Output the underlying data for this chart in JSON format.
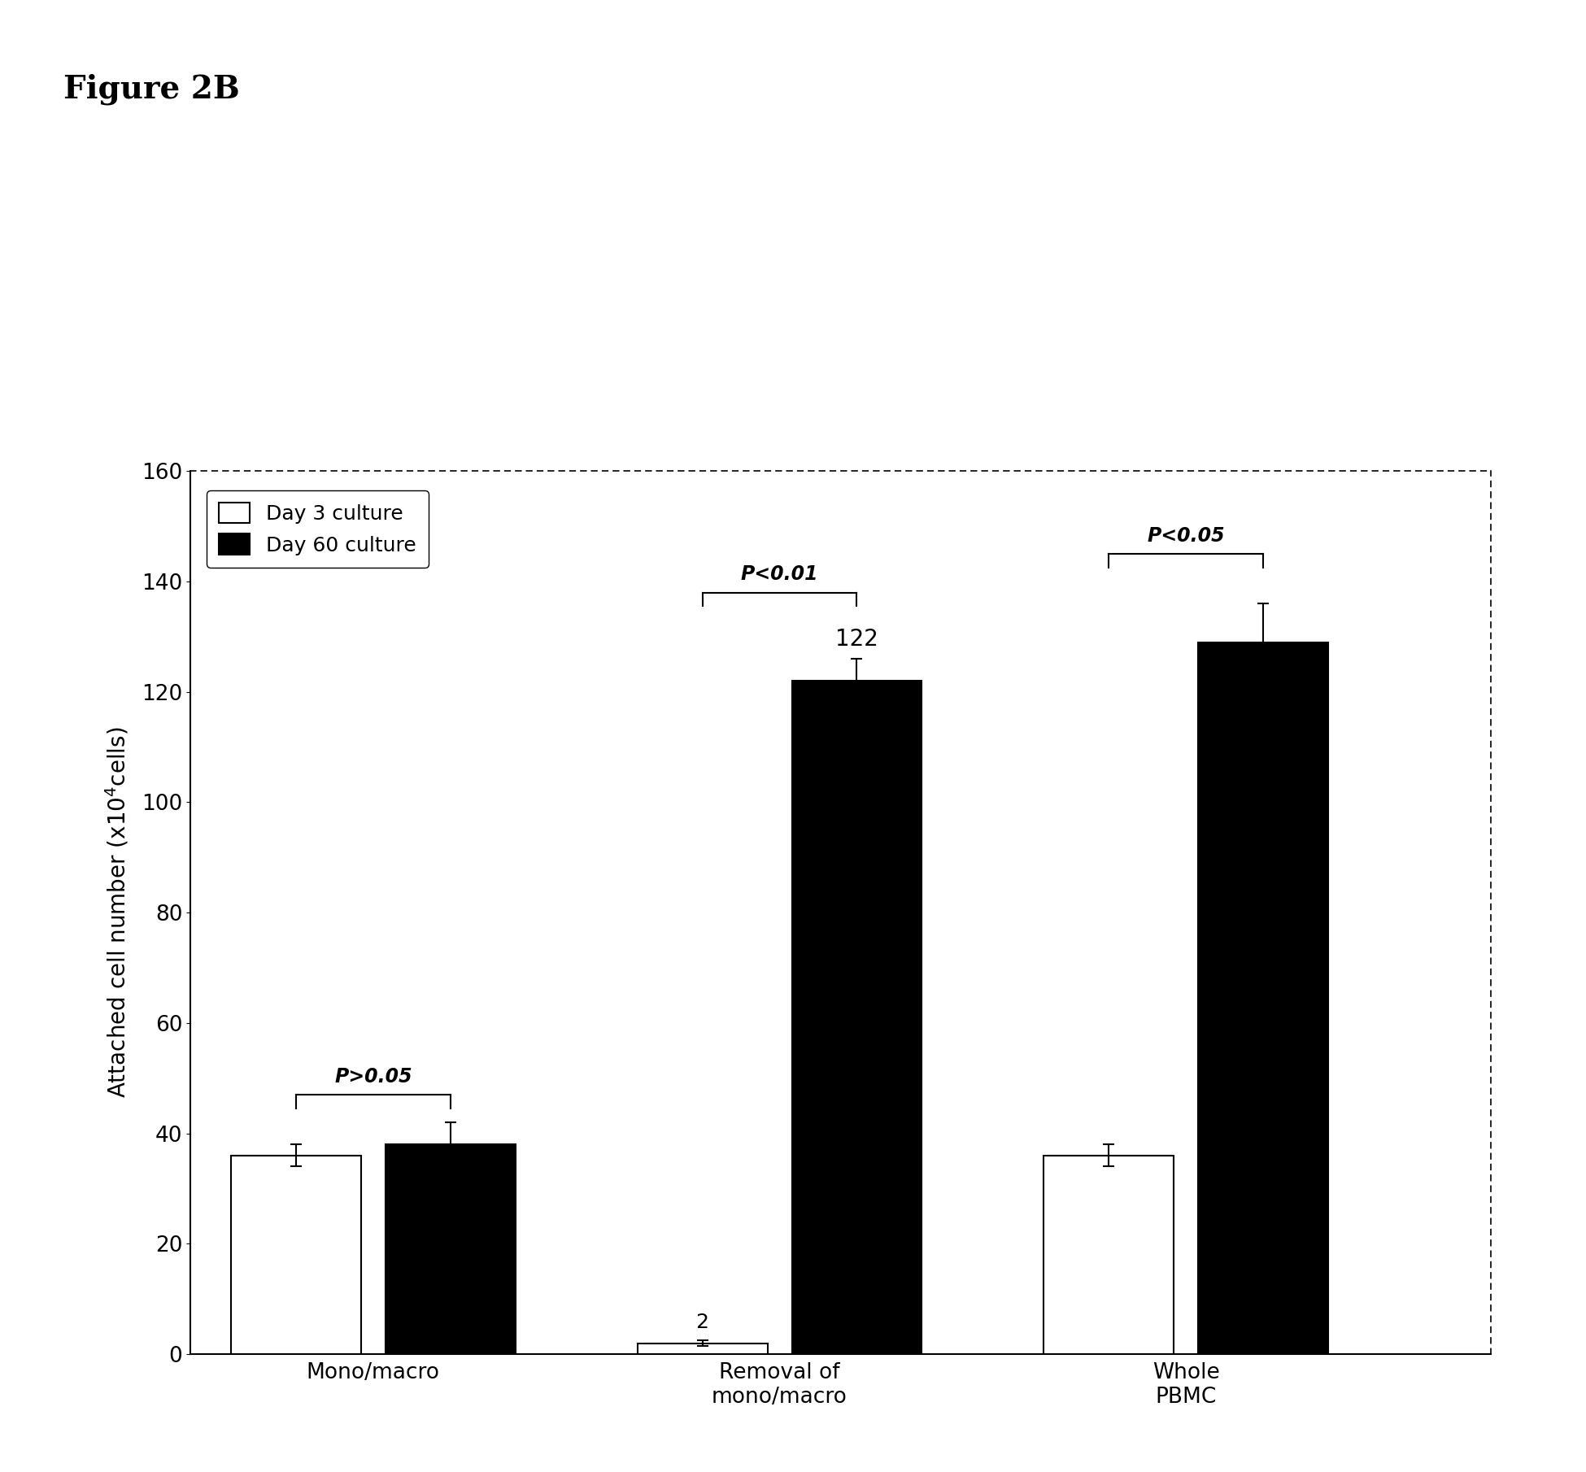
{
  "ylabel": "Attached cell number (x10⁴cells)",
  "categories": [
    "Mono/macro",
    "Removal of\nmono/macro",
    "Whole\nPBMC"
  ],
  "day3_values": [
    36,
    2,
    36
  ],
  "day60_values": [
    38,
    122,
    129
  ],
  "day3_errors": [
    2,
    0.5,
    2
  ],
  "day60_errors": [
    4,
    4,
    7
  ],
  "day3_color": "white",
  "day60_color": "black",
  "bar_edge_color": "black",
  "ylim": [
    0,
    160
  ],
  "yticks": [
    0,
    20,
    40,
    60,
    80,
    100,
    120,
    140,
    160
  ],
  "legend_labels": [
    "Day 3 culture",
    "Day 60 culture"
  ],
  "pvalue_labels": [
    "P>0.05",
    "P<0.01",
    "P<0.05"
  ],
  "bar_width": 0.32,
  "group_positions": [
    1,
    2,
    3
  ],
  "background_color": "white",
  "figure_label": "Figure 2B",
  "title_fontsize": 28,
  "axis_fontsize": 20,
  "tick_fontsize": 19,
  "legend_fontsize": 18,
  "annotation_fontsize": 17,
  "number_fontsize": 18
}
